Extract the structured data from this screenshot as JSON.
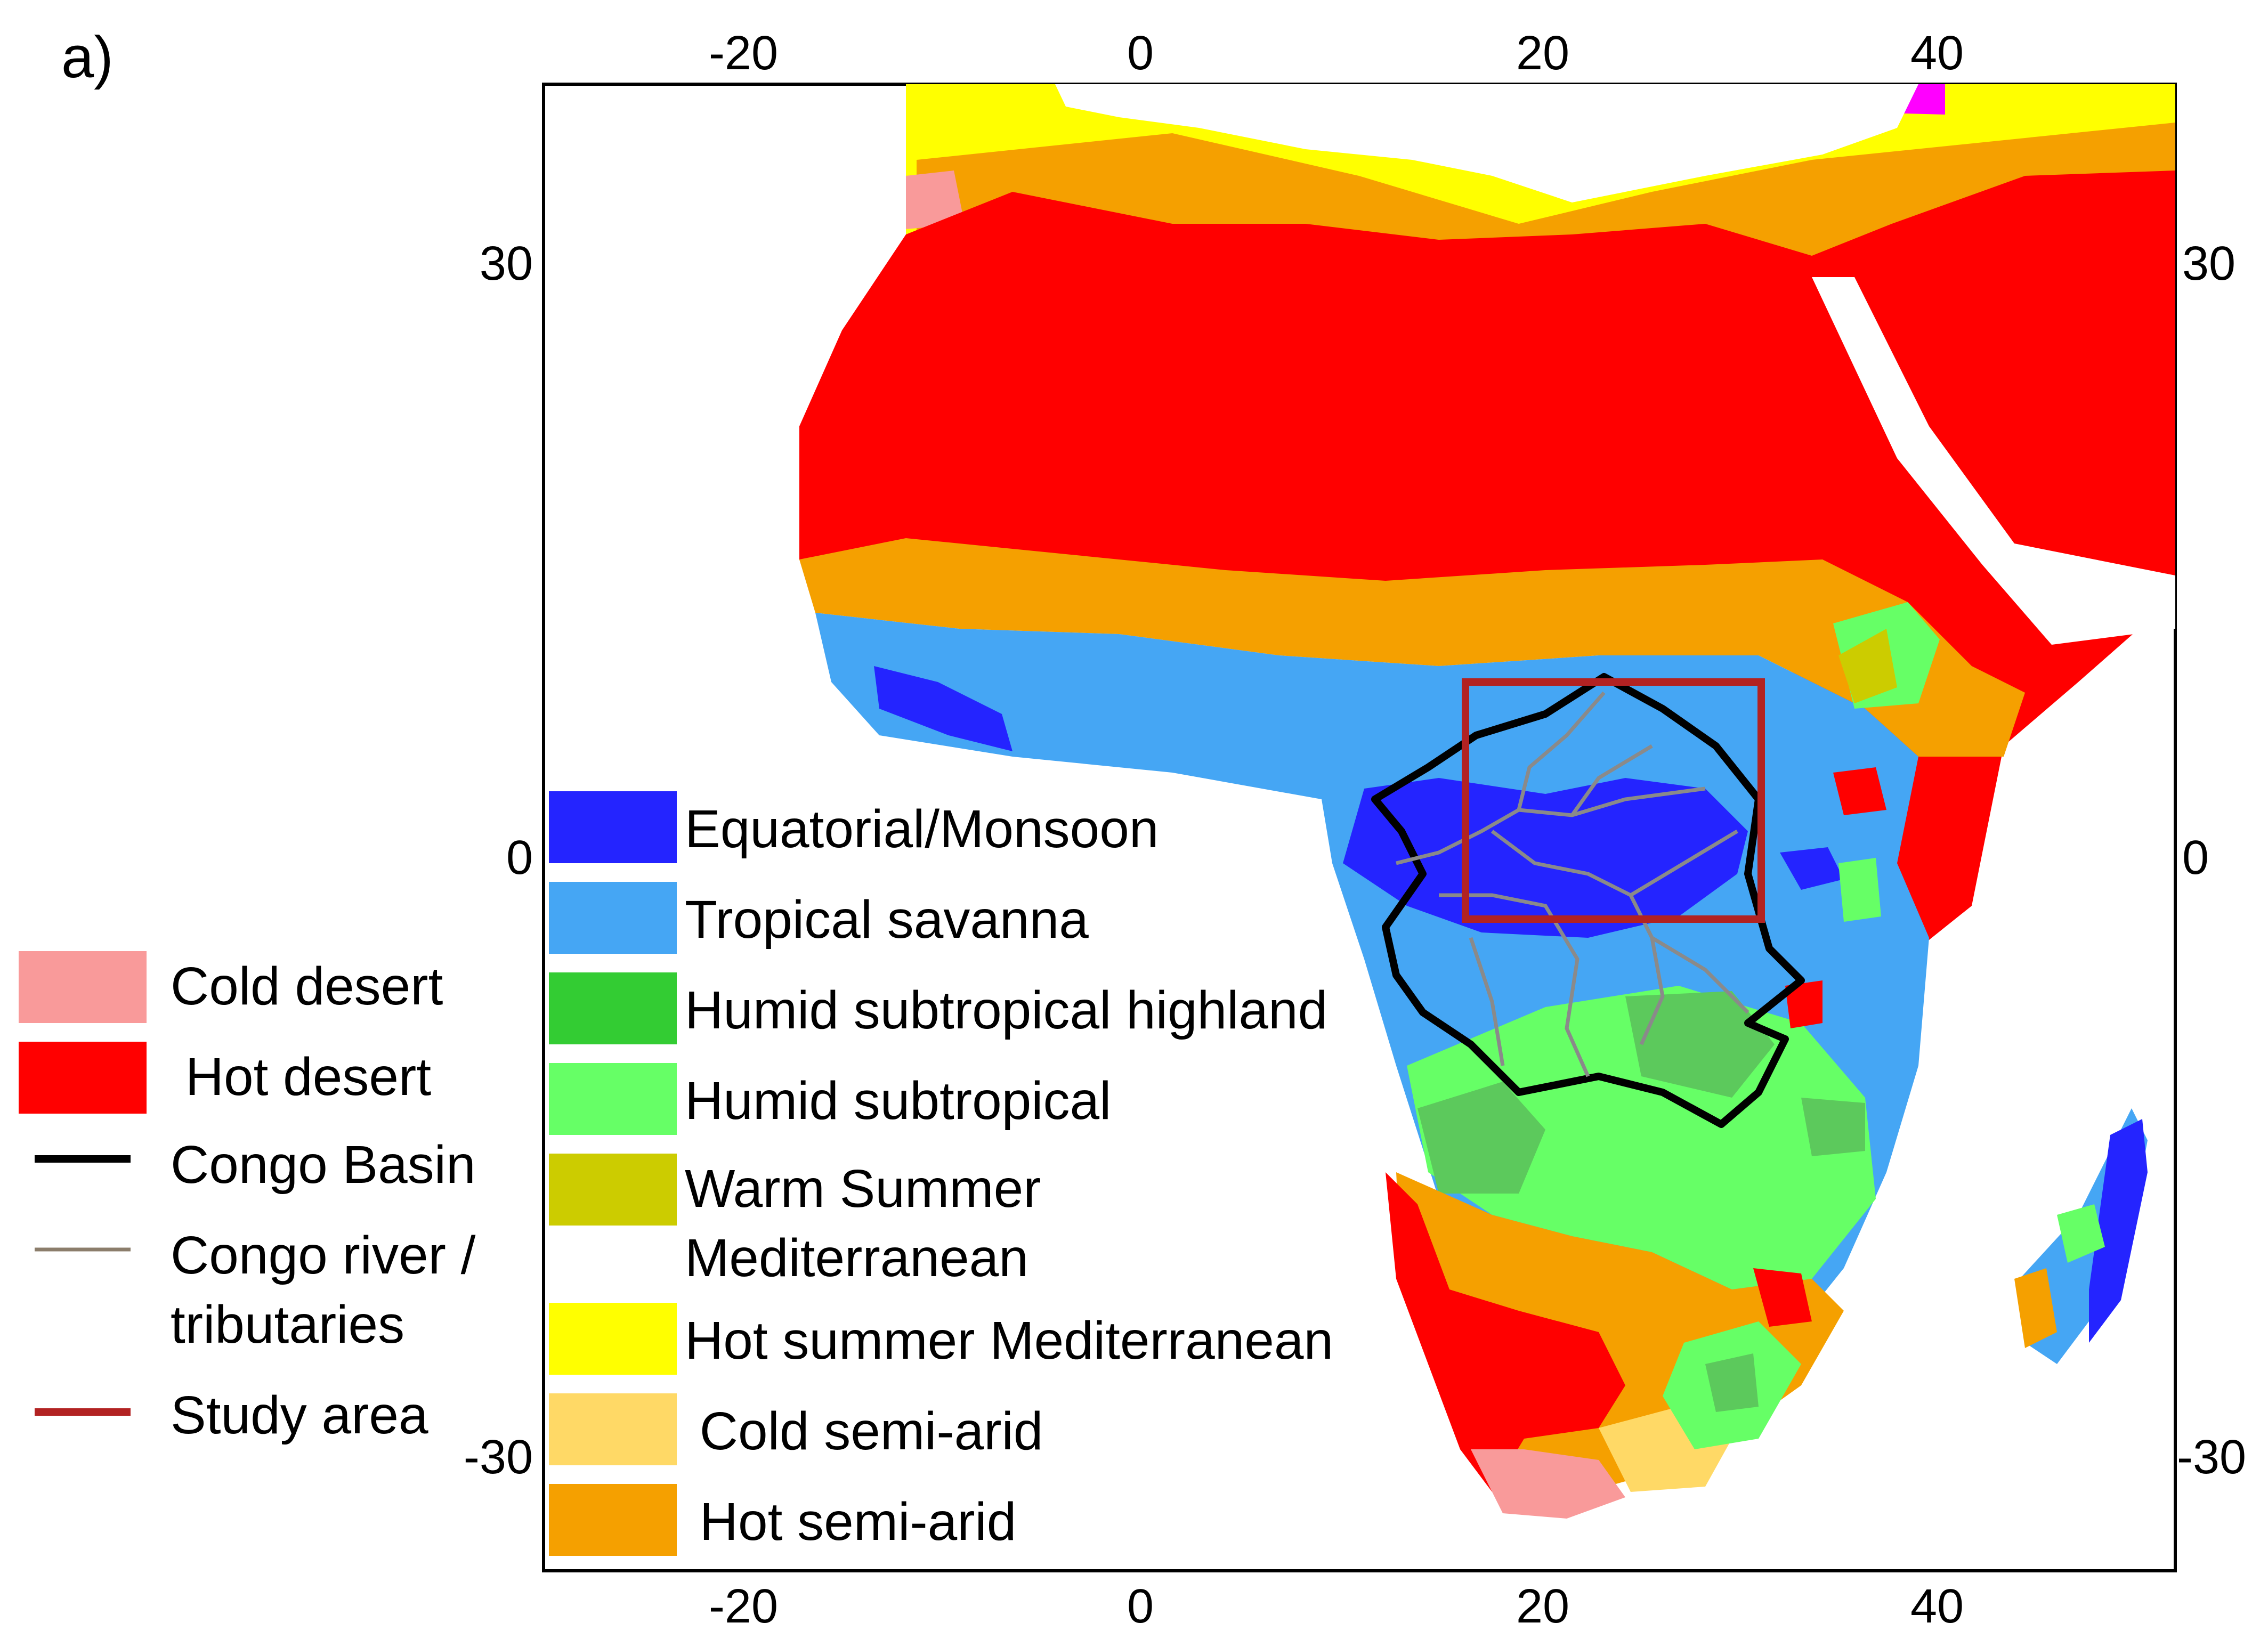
{
  "panel_label": "a)",
  "axes": {
    "x_ticks_top": [
      "-20",
      "0",
      "20",
      "40"
    ],
    "x_ticks_bottom": [
      "-20",
      "0",
      "20",
      "40"
    ],
    "y_ticks_left": [
      "30",
      "0",
      "-30"
    ],
    "y_ticks_right": [
      "30",
      "0",
      "-30"
    ]
  },
  "legend_left": [
    {
      "label": "Cold desert",
      "color": "#f99a9a",
      "kind": "swatch"
    },
    {
      "label": " Hot desert",
      "color": "#ff0000",
      "kind": "swatch"
    },
    {
      "label": "Congo Basin",
      "color": "#000000",
      "kind": "line"
    },
    {
      "label": "Congo river /",
      "label2": "tributaries",
      "color": "#8b7d6b",
      "kind": "line"
    },
    {
      "label": "Study area",
      "color": "#b22222",
      "kind": "line"
    }
  ],
  "legend_climate": [
    {
      "label": "Equatorial/Monsoon",
      "color": "#2424ff"
    },
    {
      "label": "Tropical savanna",
      "color": "#45a6f4"
    },
    {
      "label": "Humid subtropical highland",
      "color": "#33cc33"
    },
    {
      "label": "Humid subtropical",
      "color": "#66ff66"
    },
    {
      "label": "Warm Summer",
      "label2": "Mediterranean",
      "color": "#cccc00"
    },
    {
      "label": "Hot summer Mediterranean",
      "color": "#ffff00"
    },
    {
      "label": " Cold semi-arid",
      "color": "#ffd966"
    },
    {
      "label": " Hot semi-arid",
      "color": "#f5a000"
    }
  ]
}
